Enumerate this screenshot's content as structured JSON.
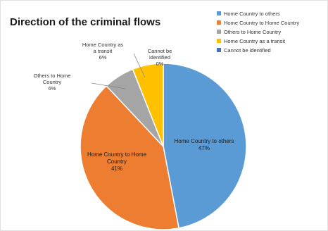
{
  "chart_data": {
    "type": "pie",
    "title": "Direction of the criminal flows",
    "legend_position": "top-right",
    "slices": [
      {
        "label": "Home Country to others",
        "legend_label": "Home Country to others",
        "pct_label": "47%",
        "value": 47,
        "color": "#5b9bd5"
      },
      {
        "label": "Home Country to Home Country",
        "legend_label": "Home Country to Home Country",
        "pct_label": "41%",
        "value": 41,
        "color": "#ed7d31"
      },
      {
        "label": "Others to Home Country",
        "legend_label": "Others to Home Country",
        "pct_label": "6%",
        "value": 6,
        "color": "#a5a5a5"
      },
      {
        "label": "Home Country as a transit",
        "legend_label": "Home Country as a transit",
        "pct_label": "6%",
        "value": 6,
        "color": "#ffc000"
      },
      {
        "label": "Cannot be identified",
        "legend_label": "Cannot be identified",
        "pct_label": "0%",
        "value": 0,
        "color": "#4472c4"
      }
    ]
  }
}
